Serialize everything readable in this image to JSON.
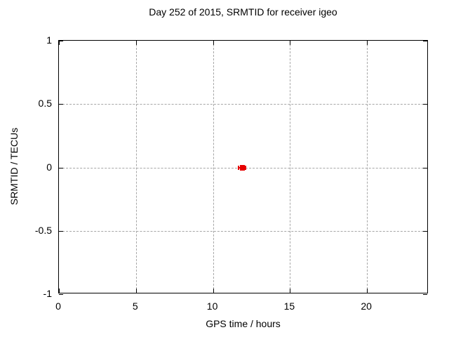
{
  "figure": {
    "background": "#ffffff",
    "border_color": "#000000",
    "grid_color": "#a6a6a6",
    "text_color": "#000000"
  },
  "chart_data": {
    "type": "scatter",
    "title": "Day 252 of 2015, SRMTID for receiver igeo",
    "xlabel": "GPS time / hours",
    "ylabel": "SRMTID / TECUs",
    "xlim": [
      0,
      24
    ],
    "ylim": [
      -1,
      1
    ],
    "xticks": [
      0,
      5,
      10,
      15,
      20
    ],
    "yticks": [
      -1,
      -0.5,
      0,
      0.5,
      1
    ],
    "grid": "dashed gray lines at major ticks, tick marks mirrored on all four borders",
    "legend": "none",
    "series": [
      {
        "name": "SRMTID",
        "style": "point with horizontal error bar",
        "color": "#e60000",
        "points": [
          {
            "x": 11.9,
            "y": 0.0,
            "xerr": 0.27
          }
        ]
      }
    ]
  }
}
